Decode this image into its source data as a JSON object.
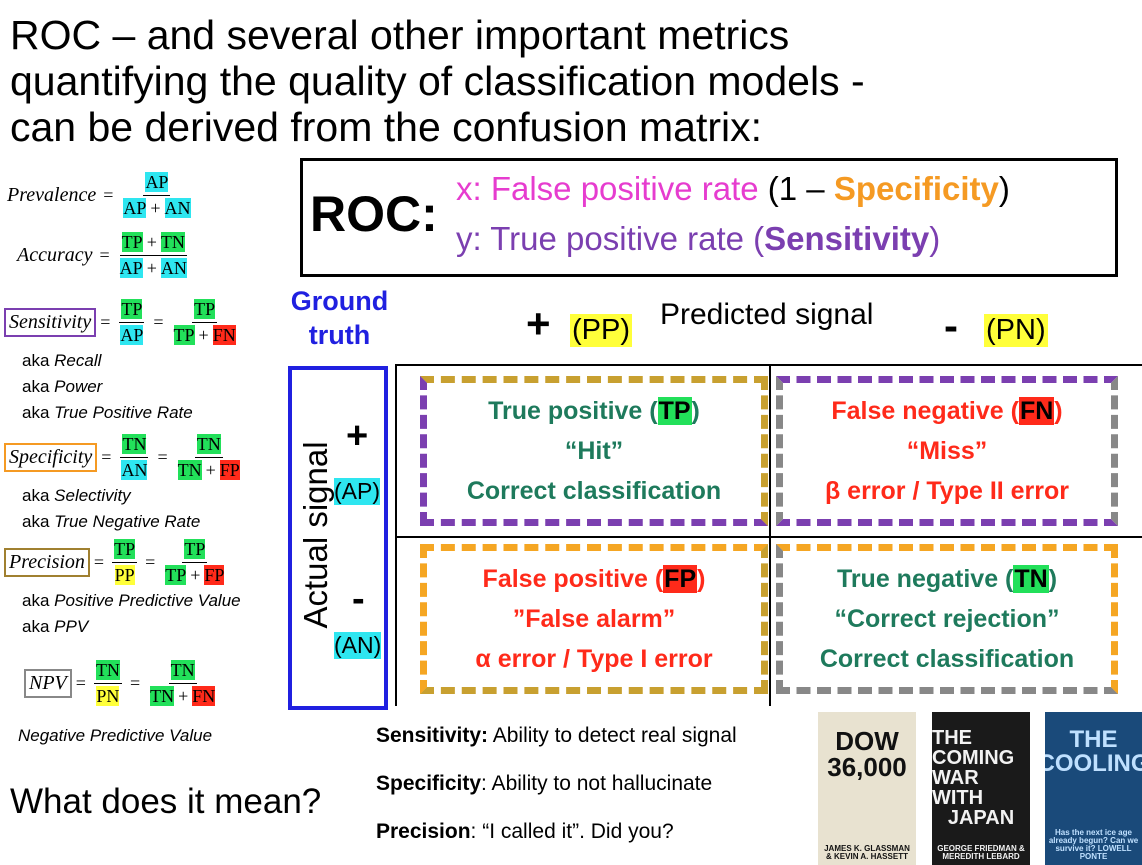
{
  "title": [
    "ROC – and several other important metrics",
    "quantifying the quality of classification models -",
    "can be derived from the confusion matrix:"
  ],
  "roc": {
    "label": "ROC:",
    "x": [
      "x: False positive rate",
      " (1 – ",
      "Specificity",
      ")"
    ],
    "y": [
      "y: True positive rate",
      " (",
      "Sensitivity",
      ")"
    ]
  },
  "equals": "=",
  "formulas": [
    {
      "name": "Prevalence",
      "fractions": [
        {
          "num": [
            "AP"
          ],
          "den": [
            "AP",
            "+",
            "AN"
          ]
        }
      ],
      "notes": []
    },
    {
      "name": "Accuracy",
      "fractions": [
        {
          "num": [
            "TP",
            "+",
            "TN"
          ],
          "den": [
            "AP",
            "+",
            "AN"
          ]
        }
      ],
      "notes": []
    },
    {
      "name": "Sensitivity",
      "fractions": [
        {
          "num": [
            "TP"
          ],
          "den": [
            "AP"
          ]
        },
        {
          "num": [
            "TP"
          ],
          "den": [
            "TP",
            "+",
            "FN"
          ]
        }
      ],
      "notes": [
        [
          "aka",
          "Recall"
        ],
        [
          "aka",
          "Power"
        ],
        [
          "aka",
          "True Positive Rate"
        ]
      ]
    },
    {
      "name": "Specificity",
      "fractions": [
        {
          "num": [
            "TN"
          ],
          "den": [
            "AN"
          ]
        },
        {
          "num": [
            "TN"
          ],
          "den": [
            "TN",
            "+",
            "FP"
          ]
        }
      ],
      "notes": [
        [
          "aka",
          "Selectivity"
        ],
        [
          "aka",
          "True Negative Rate"
        ]
      ]
    },
    {
      "name": "Precision",
      "fractions": [
        {
          "num": [
            "TP"
          ],
          "den": [
            "PP"
          ]
        },
        {
          "num": [
            "TP"
          ],
          "den": [
            "TP",
            "+",
            "FP"
          ]
        }
      ],
      "notes": [
        [
          "aka",
          "Positive Predictive Value"
        ],
        [
          "aka",
          "PPV"
        ]
      ]
    },
    {
      "name": "NPV",
      "fractions": [
        {
          "num": [
            "TN"
          ],
          "den": [
            "PN"
          ]
        },
        {
          "num": [
            "TN"
          ],
          "den": [
            "TN",
            "+",
            "FN"
          ]
        }
      ],
      "notes": [
        [
          "",
          "Negative Predictive Value"
        ]
      ]
    }
  ],
  "ground_truth": [
    "Ground",
    "truth"
  ],
  "predicted": {
    "plus": "+",
    "pp": "(PP)",
    "label": "Predicted signal",
    "minus": "-",
    "pn": "(PN)"
  },
  "actual": {
    "label": "Actual signal",
    "plus": "+",
    "ap": "(AP)",
    "minus": "-",
    "an": "(AN)"
  },
  "cells": [
    {
      "title": [
        "True positive (",
        "TP",
        ")"
      ],
      "lines": [
        "“Hit”",
        "Correct classification"
      ]
    },
    {
      "title": [
        "False negative (",
        "FN",
        ")"
      ],
      "lines": [
        "“Miss”",
        "β error /  Type II error"
      ]
    },
    {
      "title": [
        "False positive (",
        "FP",
        ")"
      ],
      "lines": [
        "”False alarm”",
        "α error / Type I error"
      ]
    },
    {
      "title": [
        "True negative (",
        "TN",
        ")"
      ],
      "lines": [
        "“Correct rejection”",
        "Correct classification"
      ]
    }
  ],
  "meanings": [
    {
      "term": "Sensitivity:",
      "text": " Ability to detect real signal"
    },
    {
      "term": "Specificity",
      "text": ": Ability to not hallucinate"
    },
    {
      "term": "Precision",
      "text": ": “I called it”. Did you?"
    }
  ],
  "question": "What does it mean?",
  "books": [
    {
      "title": [
        "DOW",
        "36,000"
      ],
      "author": "JAMES K. GLASSMAN & KEVIN A. HASSETT"
    },
    {
      "title": [
        "THE COMING",
        "WAR WITH",
        "JAPAN"
      ],
      "author": "GEORGE FRIEDMAN & MEREDITH LEBARD"
    },
    {
      "title": [
        "THE",
        "COOLING"
      ],
      "author": "Has the next ice age already begun? Can we survive it? LOWELL PONTE"
    }
  ]
}
